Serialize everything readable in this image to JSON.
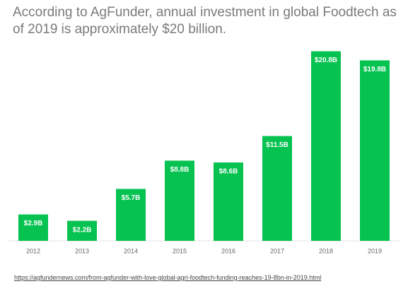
{
  "chart_data": {
    "type": "bar",
    "title": "According to AgFunder, annual investment in global Foodtech as of 2019 is approximately $20 billion.",
    "categories": [
      "2012",
      "2013",
      "2014",
      "2015",
      "2016",
      "2017",
      "2018",
      "2019"
    ],
    "values": [
      2.9,
      2.2,
      5.7,
      8.8,
      8.6,
      11.5,
      20.8,
      19.8
    ],
    "value_labels": [
      "$2.9B",
      "$2.2B",
      "$5.7B",
      "$8.8B",
      "$8.6B",
      "$11.5B",
      "$20.8B",
      "$19.8B"
    ],
    "color": "#06c250",
    "ylim": [
      0,
      21
    ],
    "source": "https://agfundernews.com/from-agfunder-with-love-global-agri-foodtech-funding-reaches-19-8bn-in-2019.html"
  }
}
